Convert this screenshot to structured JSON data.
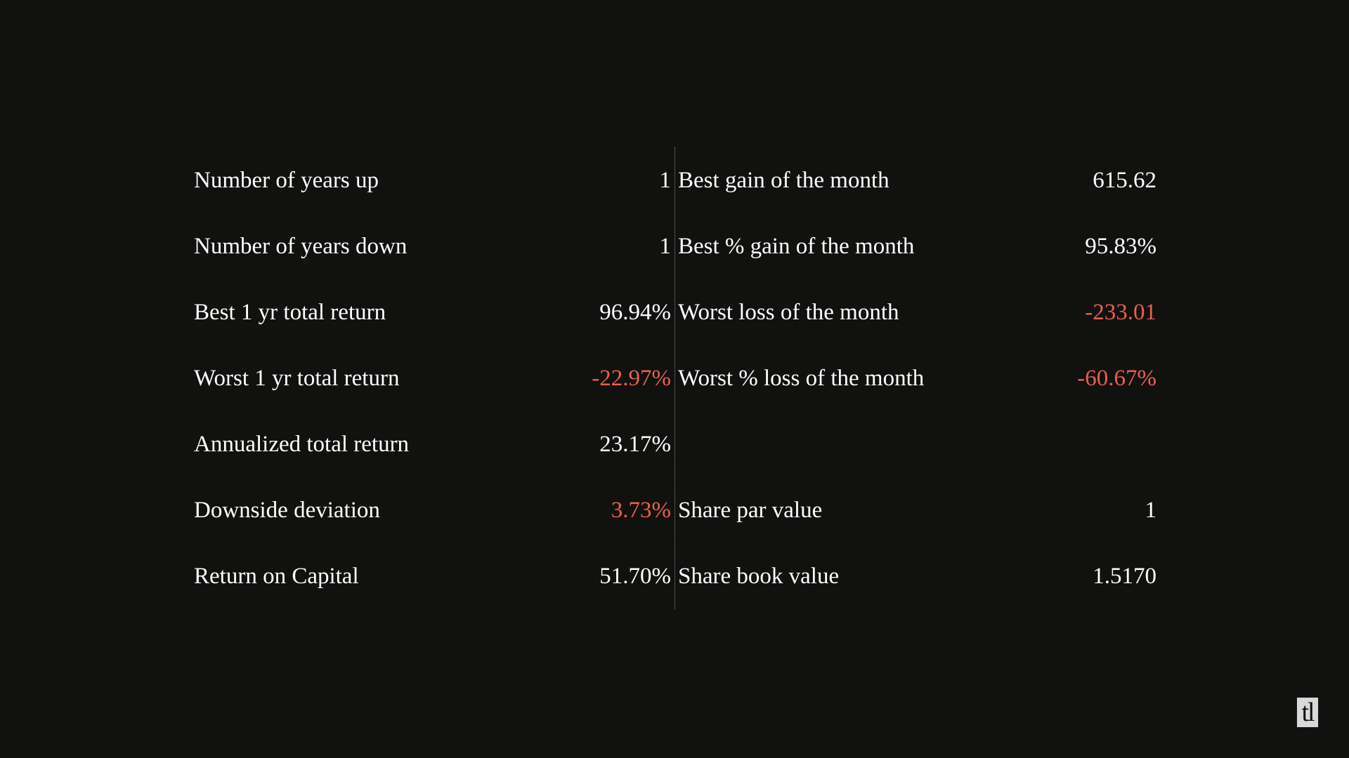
{
  "colors": {
    "background": "#111110",
    "text": "#ffffff",
    "negative": "#e8604c",
    "divider": "#8a8a8a"
  },
  "left_stats": [
    {
      "label": "Number of years up",
      "value": "1",
      "negative": false
    },
    {
      "label": "Number of years down",
      "value": "1",
      "negative": false
    },
    {
      "label": "Best 1 yr total return",
      "value": "96.94%",
      "negative": false
    },
    {
      "label": "Worst 1 yr total return",
      "value": "-22.97%",
      "negative": true
    },
    {
      "label": "Annualized total return",
      "value": "23.17%",
      "negative": false
    },
    {
      "label": "Downside deviation",
      "value": "3.73%",
      "negative": true
    },
    {
      "label": "Return on Capital",
      "value": "51.70%",
      "negative": false
    }
  ],
  "right_stats": [
    {
      "label": "Best gain of the month",
      "value": "615.62",
      "negative": false
    },
    {
      "label": "Best % gain of the month",
      "value": "95.83%",
      "negative": false
    },
    {
      "label": "Worst loss of the month",
      "value": "-233.01",
      "negative": true
    },
    {
      "label": "Worst % loss of the month",
      "value": "-60.67%",
      "negative": true
    },
    {
      "label": "",
      "value": "",
      "negative": false
    },
    {
      "label": "Share par value",
      "value": "1",
      "negative": false
    },
    {
      "label": "Share book value",
      "value": "1.5170",
      "negative": false
    }
  ],
  "logo": {
    "text": "tl",
    "icon": "tl-logo-icon"
  }
}
